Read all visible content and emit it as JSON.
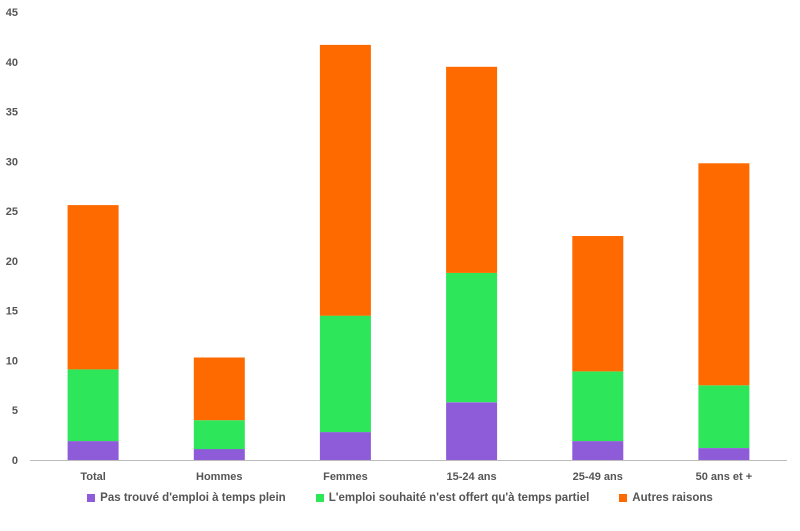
{
  "chart_data": {
    "type": "bar",
    "stacked": true,
    "categories": [
      "Total",
      "Hommes",
      "Femmes",
      "15-24 ans",
      "25-49 ans",
      "50 ans et +"
    ],
    "series": [
      {
        "name": "Pas trouvé d'emploi à temps plein",
        "color": "#8e5cd9",
        "values": [
          1.9,
          1.1,
          2.8,
          5.8,
          1.9,
          1.2
        ]
      },
      {
        "name": "L'emploi souhaité n'est offert qu'à temps partiel",
        "color": "#2ee65a",
        "values": [
          7.2,
          2.9,
          11.7,
          13.0,
          7.0,
          6.3
        ]
      },
      {
        "name": "Autres raisons",
        "color": "#ff6a00",
        "values": [
          16.5,
          6.3,
          27.2,
          20.7,
          13.6,
          22.3
        ]
      }
    ],
    "ylim": [
      0,
      45
    ],
    "yticks": [
      0,
      5,
      10,
      15,
      20,
      25,
      30,
      35,
      40,
      45
    ],
    "grid": false,
    "legend": "bottom"
  }
}
